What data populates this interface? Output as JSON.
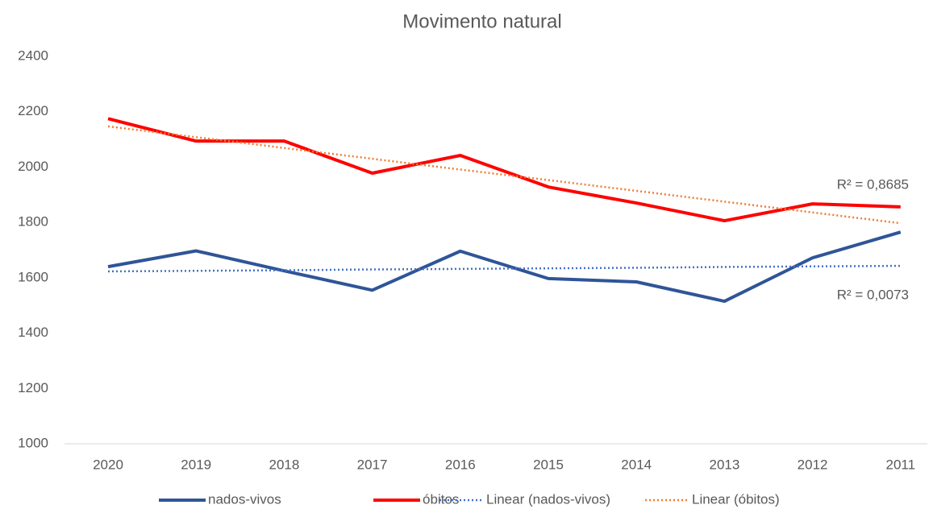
{
  "chart_data": {
    "type": "line",
    "title": "Movimento natural",
    "categories": [
      "2020",
      "2019",
      "2018",
      "2017",
      "2016",
      "2015",
      "2014",
      "2013",
      "2012",
      "2011"
    ],
    "series": [
      {
        "name": "nados-vivos",
        "color": "#2f5597",
        "dash": "solid",
        "values": [
          1640,
          1697,
          1625,
          1555,
          1696,
          1597,
          1585,
          1515,
          1672,
          1765
        ]
      },
      {
        "name": "óbitos",
        "color": "#ff0000",
        "dash": "solid",
        "values": [
          2175,
          2094,
          2094,
          1978,
          2042,
          1928,
          1870,
          1806,
          1867,
          1856
        ]
      },
      {
        "name": "Linear (nados-vivos)",
        "color": "#4472c4",
        "dash": "dotted",
        "values": [
          1623,
          1625,
          1627,
          1630,
          1632,
          1634,
          1636,
          1639,
          1641,
          1643
        ]
      },
      {
        "name": "Linear (óbitos)",
        "color": "#ed7d31",
        "dash": "dotted",
        "values": [
          2147,
          2108,
          2069,
          2030,
          1991,
          1953,
          1914,
          1875,
          1836,
          1797
        ]
      }
    ],
    "annotations": [
      "R² = 0,8685",
      "R² = 0,0073"
    ],
    "ylim": [
      1000,
      2400
    ],
    "yticks": [
      1000,
      1200,
      1400,
      1600,
      1800,
      2000,
      2200,
      2400
    ],
    "grid": false,
    "legend": "bottom"
  }
}
